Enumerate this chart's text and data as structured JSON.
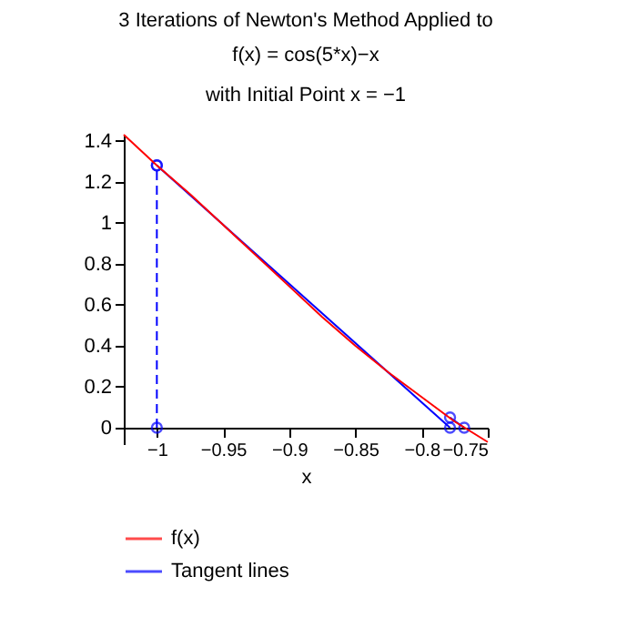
{
  "chart_data": {
    "type": "line",
    "title": "3 Iterations of Newton's Method Applied to",
    "subtitle": "f(x) = cos(5*x)−x\nwith Initial Point x = −1",
    "xlabel": "x",
    "xlim": [
      -1.025,
      -0.75
    ],
    "ylim": [
      -0.08,
      1.43
    ],
    "xticks": [
      -1,
      -0.95,
      -0.9,
      -0.85,
      -0.8,
      -0.75
    ],
    "yticks": [
      0,
      0.2,
      0.4,
      0.6,
      0.8,
      1,
      1.2,
      1.4
    ],
    "grid": false,
    "legend": "bottom",
    "series": [
      {
        "name": "f(x)",
        "color": "#ff0000",
        "x": [
          -1.025,
          -1,
          -0.975,
          -0.95,
          -0.925,
          -0.9,
          -0.875,
          -0.85,
          -0.825,
          -0.8,
          -0.775,
          -0.75
        ],
        "values": [
          1.43,
          1.28,
          1.14,
          0.99,
          0.84,
          0.69,
          0.54,
          0.4,
          0.27,
          0.15,
          0.03,
          -0.07
        ]
      },
      {
        "name": "Tangent lines",
        "color": "#0000ff",
        "x": [
          -1,
          -0.7785
        ],
        "values": [
          1.28,
          0
        ],
        "marker": "circle"
      },
      {
        "color": "#0000ff",
        "x": [
          -0.7785,
          -0.7678
        ],
        "values": [
          0.05,
          0
        ],
        "marker": "circle"
      },
      {
        "color": "#0000ff",
        "x": [
          -1,
          -1
        ],
        "values": [
          0,
          1.28
        ],
        "line_style": "dashed",
        "marker": "circle"
      }
    ]
  }
}
